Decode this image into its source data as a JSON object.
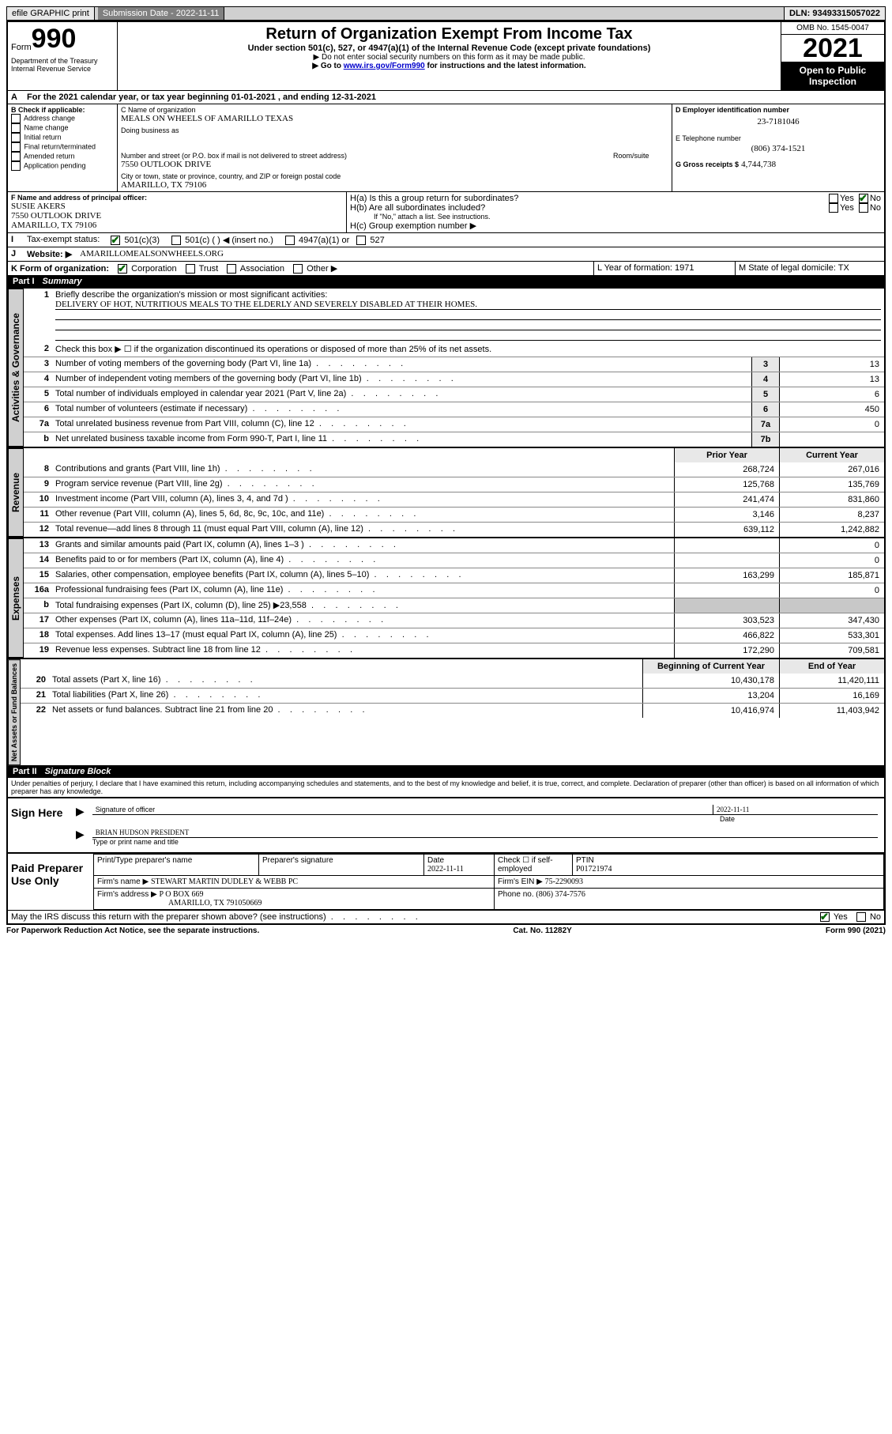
{
  "topbar": {
    "efile": "efile GRAPHIC print",
    "subdate_label": "Submission Date - 2022-11-11",
    "dln": "DLN: 93493315057022"
  },
  "header": {
    "form_label": "Form",
    "form_num": "990",
    "title": "Return of Organization Exempt From Income Tax",
    "subtitle": "Under section 501(c), 527, or 4947(a)(1) of the Internal Revenue Code (except private foundations)",
    "note1": "▶ Do not enter social security numbers on this form as it may be made public.",
    "note2_pre": "▶ Go to ",
    "note2_link": "www.irs.gov/Form990",
    "note2_post": " for instructions and the latest information.",
    "dept": "Department of the Treasury\nInternal Revenue Service",
    "omb": "OMB No. 1545-0047",
    "year": "2021",
    "open": "Open to Public Inspection"
  },
  "A": {
    "text": "For the 2021 calendar year, or tax year beginning 01-01-2021   , and ending 12-31-2021"
  },
  "B": {
    "label": "B Check if applicable:",
    "items": [
      "Address change",
      "Name change",
      "Initial return",
      "Final return/terminated",
      "Amended return",
      "Application pending"
    ]
  },
  "C": {
    "name_label": "C Name of organization",
    "name": "MEALS ON WHEELS OF AMARILLO TEXAS",
    "dba_label": "Doing business as",
    "addr_label": "Number and street (or P.O. box if mail is not delivered to street address)",
    "room_label": "Room/suite",
    "addr": "7550 OUTLOOK DRIVE",
    "city_label": "City or town, state or province, country, and ZIP or foreign postal code",
    "city": "AMARILLO, TX  79106"
  },
  "D": {
    "label": "D Employer identification number",
    "val": "23-7181046"
  },
  "E": {
    "label": "E Telephone number",
    "val": "(806) 374-1521"
  },
  "G": {
    "label": "G Gross receipts $",
    "val": "4,744,738"
  },
  "F": {
    "label": "F Name and address of principal officer:",
    "name": "SUSIE AKERS",
    "addr1": "7550 OUTLOOK DRIVE",
    "addr2": "AMARILLO, TX  79106"
  },
  "H": {
    "a": "H(a)  Is this a group return for subordinates?",
    "a_yes": "Yes",
    "a_no": "No",
    "b": "H(b)  Are all subordinates included?",
    "b_yes": "Yes",
    "b_no": "No",
    "b_note": "If \"No,\" attach a list. See instructions.",
    "c": "H(c)  Group exemption number ▶"
  },
  "I": {
    "label": "Tax-exempt status:",
    "o1": "501(c)(3)",
    "o2": "501(c) (  ) ◀ (insert no.)",
    "o3": "4947(a)(1) or",
    "o4": "527"
  },
  "J": {
    "label": "Website: ▶",
    "val": "AMARILLOMEALSONWHEELS.ORG"
  },
  "K": {
    "label": "K Form of organization:",
    "o1": "Corporation",
    "o2": "Trust",
    "o3": "Association",
    "o4": "Other ▶"
  },
  "L": {
    "label": "L Year of formation: 1971"
  },
  "M": {
    "label": "M State of legal domicile: TX"
  },
  "part1": {
    "label": "Part I",
    "title": "Summary"
  },
  "mission": {
    "q": "Briefly describe the organization's mission or most significant activities:",
    "a": "DELIVERY OF HOT, NUTRITIOUS MEALS TO THE ELDERLY AND SEVERELY DISABLED AT THEIR HOMES."
  },
  "gov_lines": [
    {
      "n": "2",
      "t": "Check this box ▶ ☐  if the organization discontinued its operations or disposed of more than 25% of its net assets.",
      "box": "",
      "v": ""
    },
    {
      "n": "3",
      "t": "Number of voting members of the governing body (Part VI, line 1a)",
      "box": "3",
      "v": "13"
    },
    {
      "n": "4",
      "t": "Number of independent voting members of the governing body (Part VI, line 1b)",
      "box": "4",
      "v": "13"
    },
    {
      "n": "5",
      "t": "Total number of individuals employed in calendar year 2021 (Part V, line 2a)",
      "box": "5",
      "v": "6"
    },
    {
      "n": "6",
      "t": "Total number of volunteers (estimate if necessary)",
      "box": "6",
      "v": "450"
    },
    {
      "n": "7a",
      "t": "Total unrelated business revenue from Part VIII, column (C), line 12",
      "box": "7a",
      "v": "0"
    },
    {
      "n": "b",
      "t": "Net unrelated business taxable income from Form 990-T, Part I, line 11",
      "box": "7b",
      "v": ""
    }
  ],
  "col_hdr": {
    "prior": "Prior Year",
    "current": "Current Year"
  },
  "rev_lines": [
    {
      "n": "8",
      "t": "Contributions and grants (Part VIII, line 1h)",
      "p": "268,724",
      "c": "267,016"
    },
    {
      "n": "9",
      "t": "Program service revenue (Part VIII, line 2g)",
      "p": "125,768",
      "c": "135,769"
    },
    {
      "n": "10",
      "t": "Investment income (Part VIII, column (A), lines 3, 4, and 7d )",
      "p": "241,474",
      "c": "831,860"
    },
    {
      "n": "11",
      "t": "Other revenue (Part VIII, column (A), lines 5, 6d, 8c, 9c, 10c, and 11e)",
      "p": "3,146",
      "c": "8,237"
    },
    {
      "n": "12",
      "t": "Total revenue—add lines 8 through 11 (must equal Part VIII, column (A), line 12)",
      "p": "639,112",
      "c": "1,242,882"
    }
  ],
  "exp_lines": [
    {
      "n": "13",
      "t": "Grants and similar amounts paid (Part IX, column (A), lines 1–3 )",
      "p": "",
      "c": "0"
    },
    {
      "n": "14",
      "t": "Benefits paid to or for members (Part IX, column (A), line 4)",
      "p": "",
      "c": "0"
    },
    {
      "n": "15",
      "t": "Salaries, other compensation, employee benefits (Part IX, column (A), lines 5–10)",
      "p": "163,299",
      "c": "185,871"
    },
    {
      "n": "16a",
      "t": "Professional fundraising fees (Part IX, column (A), line 11e)",
      "p": "",
      "c": "0"
    },
    {
      "n": "b",
      "t": "Total fundraising expenses (Part IX, column (D), line 25) ▶23,558",
      "p": "SHADE",
      "c": "SHADE"
    },
    {
      "n": "17",
      "t": "Other expenses (Part IX, column (A), lines 11a–11d, 11f–24e)",
      "p": "303,523",
      "c": "347,430"
    },
    {
      "n": "18",
      "t": "Total expenses. Add lines 13–17 (must equal Part IX, column (A), line 25)",
      "p": "466,822",
      "c": "533,301"
    },
    {
      "n": "19",
      "t": "Revenue less expenses. Subtract line 18 from line 12",
      "p": "172,290",
      "c": "709,581"
    }
  ],
  "bal_hdr": {
    "b": "Beginning of Current Year",
    "e": "End of Year"
  },
  "bal_lines": [
    {
      "n": "20",
      "t": "Total assets (Part X, line 16)",
      "p": "10,430,178",
      "c": "11,420,111"
    },
    {
      "n": "21",
      "t": "Total liabilities (Part X, line 26)",
      "p": "13,204",
      "c": "16,169"
    },
    {
      "n": "22",
      "t": "Net assets or fund balances. Subtract line 21 from line 20",
      "p": "10,416,974",
      "c": "11,403,942"
    }
  ],
  "tabs": {
    "gov": "Activities & Governance",
    "rev": "Revenue",
    "exp": "Expenses",
    "bal": "Net Assets or Fund Balances"
  },
  "part2": {
    "label": "Part II",
    "title": "Signature Block"
  },
  "sig": {
    "decl": "Under penalties of perjury, I declare that I have examined this return, including accompanying schedules and statements, and to the best of my knowledge and belief, it is true, correct, and complete. Declaration of preparer (other than officer) is based on all information of which preparer has any knowledge.",
    "sign_here": "Sign Here",
    "sig_officer": "Signature of officer",
    "date": "Date",
    "date_val": "2022-11-11",
    "name": "BRIAN HUDSON  PRESIDENT",
    "name_label": "Type or print name and title",
    "paid": "Paid Preparer Use Only",
    "prep_name_label": "Print/Type preparer's name",
    "prep_sig_label": "Preparer's signature",
    "prep_date_label": "Date",
    "prep_date": "2022-11-11",
    "self_emp": "Check ☐ if self-employed",
    "ptin_label": "PTIN",
    "ptin": "P01721974",
    "firm_name_label": "Firm's name    ▶",
    "firm_name": "STEWART MARTIN DUDLEY & WEBB PC",
    "firm_ein_label": "Firm's EIN ▶",
    "firm_ein": "75-2290093",
    "firm_addr_label": "Firm's address ▶",
    "firm_addr1": "P O BOX 669",
    "firm_addr2": "AMARILLO, TX  791050669",
    "phone_label": "Phone no.",
    "phone": "(806) 374-7576",
    "discuss": "May the IRS discuss this return with the preparer shown above? (see instructions)",
    "yes": "Yes",
    "no": "No"
  },
  "footer": {
    "l": "For Paperwork Reduction Act Notice, see the separate instructions.",
    "c": "Cat. No. 11282Y",
    "r": "Form 990 (2021)"
  }
}
